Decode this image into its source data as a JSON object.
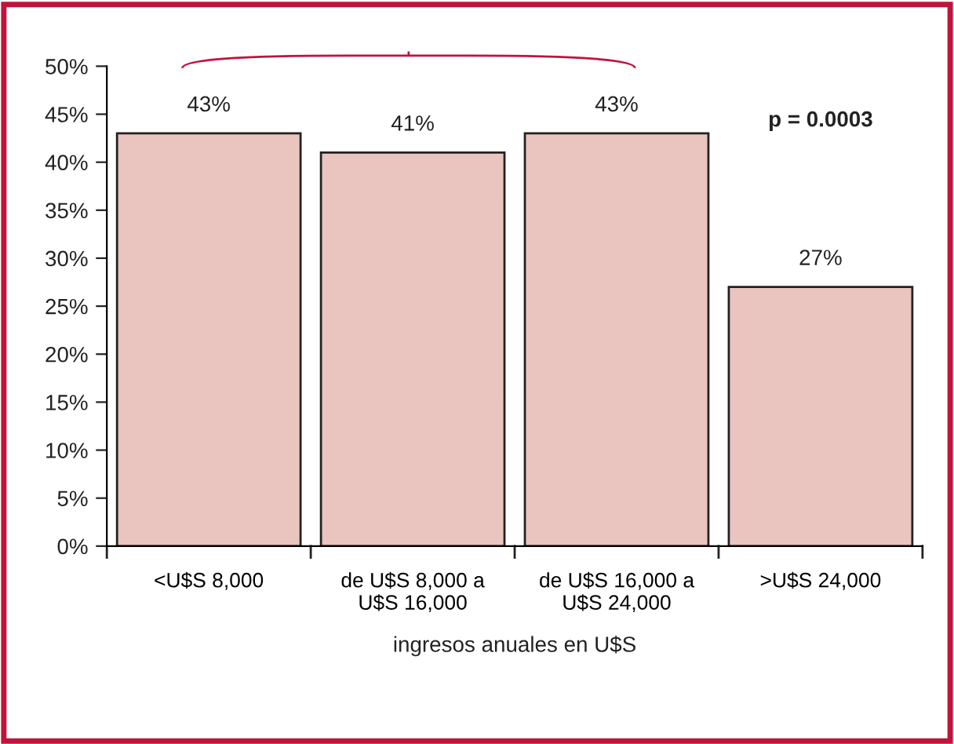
{
  "chart_data": {
    "type": "bar",
    "xlabel": "ingresos anuales en U$S",
    "categories": [
      "<U$S 8,000",
      "de U$S 8,000 a\nU$S 16,000",
      "de U$S 16,000 a\nU$S 24,000",
      ">U$S 24,000"
    ],
    "values": [
      43,
      41,
      43,
      27
    ],
    "value_labels": [
      "43%",
      "41%",
      "43%",
      "27%"
    ],
    "color": "#eac4be",
    "ylim": [
      0,
      50
    ],
    "yticks": [
      {
        "value": 0,
        "label": "0%"
      },
      {
        "value": 5,
        "label": "5%"
      },
      {
        "value": 10,
        "label": "10%"
      },
      {
        "value": 15,
        "label": "15%"
      },
      {
        "value": 20,
        "label": "20%"
      },
      {
        "value": 25,
        "label": "25%"
      },
      {
        "value": 30,
        "label": "30%"
      },
      {
        "value": 35,
        "label": "35%"
      },
      {
        "value": 40,
        "label": "40%"
      },
      {
        "value": 45,
        "label": "45%"
      },
      {
        "value": 50,
        "label": "50%"
      }
    ],
    "annotations": [
      "p = 0.0003"
    ],
    "grid": false
  }
}
